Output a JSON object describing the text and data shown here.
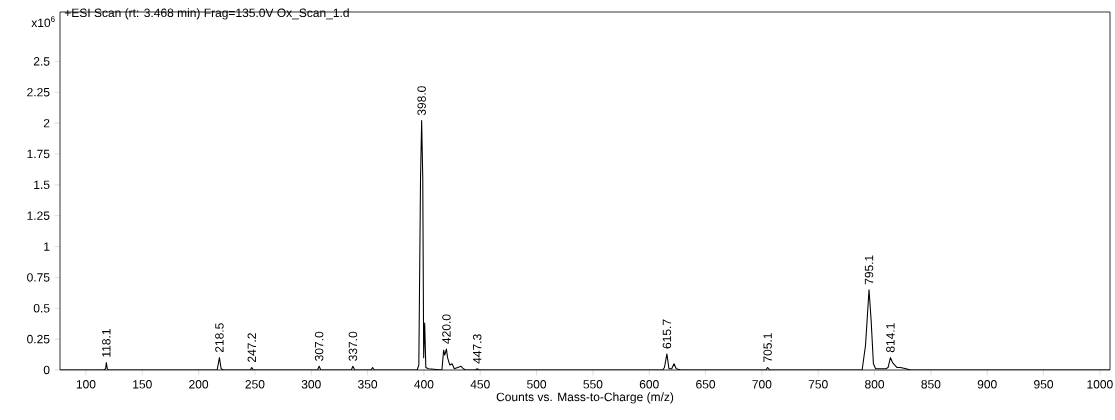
{
  "chart_data": {
    "type": "line",
    "title": "+ESI Scan (rt: 3.468 min) Frag=135.0V Ox_Scan_1.d",
    "xlabel": "Counts vs. Mass-to-Charge (m/z)",
    "ylabel": "x10$^{6}$",
    "x": [
      77,
      100,
      116,
      117.5,
      118.1,
      119,
      120,
      216.5,
      218.5,
      220,
      222,
      246,
      247.2,
      248.5,
      305.5,
      307.0,
      308.5,
      335.5,
      337.0,
      338.5,
      353,
      354.5,
      356,
      394,
      395.5,
      397,
      398.0,
      399,
      399.8,
      400.7,
      401.7,
      404,
      416,
      417.5,
      418.5,
      420.0,
      421,
      423,
      425,
      427,
      433,
      435,
      437,
      446,
      447.3,
      449,
      612,
      613.5,
      615.7,
      617.5,
      620,
      622,
      624,
      628,
      703.5,
      705.1,
      707,
      789,
      792,
      795.1,
      797,
      799,
      801,
      810,
      812,
      814.1,
      816,
      818,
      820,
      823,
      828,
      832,
      1009
    ],
    "series": [
      {
        "color": "#000000",
        "values": [
          0,
          0,
          0,
          0.01,
          0.06,
          0.01,
          0,
          0,
          0.1,
          0.01,
          0,
          0,
          0.02,
          0,
          0,
          0.03,
          0,
          0,
          0.03,
          0,
          0,
          0.02,
          0,
          0,
          0.04,
          1.55,
          2.02,
          1.55,
          0.1,
          0.38,
          0.02,
          0.01,
          0,
          0.16,
          0.12,
          0.17,
          0.1,
          0.04,
          0.05,
          0.01,
          0.03,
          0.01,
          0,
          0,
          0.01,
          0,
          0,
          0.02,
          0.13,
          0.01,
          0.01,
          0.05,
          0.01,
          0,
          0,
          0.02,
          0,
          0,
          0.2,
          0.65,
          0.4,
          0.05,
          0.01,
          0.01,
          0.02,
          0.1,
          0.06,
          0.04,
          0.02,
          0.02,
          0.01,
          0,
          0
        ]
      }
    ],
    "xlim": [
      77,
      1009
    ],
    "ylim": [
      0,
      2.9
    ],
    "xticks": [
      100,
      150,
      200,
      250,
      300,
      350,
      400,
      450,
      500,
      550,
      600,
      650,
      700,
      750,
      800,
      850,
      900,
      950,
      1000
    ],
    "yticks": [
      0,
      0.25,
      0.5,
      0.75,
      1,
      1.25,
      1.5,
      1.75,
      2,
      2.25,
      2.5
    ],
    "annotations": [
      {
        "text": "118.1",
        "x": 118.1,
        "y": 0.06
      },
      {
        "text": "218.5",
        "x": 218.5,
        "y": 0.1
      },
      {
        "text": "247.2",
        "x": 247.2,
        "y": 0.02
      },
      {
        "text": "307.0",
        "x": 307.0,
        "y": 0.03
      },
      {
        "text": "337.0",
        "x": 337.0,
        "y": 0.03
      },
      {
        "text": "398.0",
        "x": 398.0,
        "y": 2.02
      },
      {
        "text": "420.0",
        "x": 420.0,
        "y": 0.17
      },
      {
        "text": "447.3",
        "x": 447.3,
        "y": 0.01
      },
      {
        "text": "615.7",
        "x": 615.7,
        "y": 0.13
      },
      {
        "text": "705.1",
        "x": 705.1,
        "y": 0.02
      },
      {
        "text": "795.1",
        "x": 795.1,
        "y": 0.65
      },
      {
        "text": "814.1",
        "x": 814.1,
        "y": 0.1
      }
    ],
    "grid": false,
    "marker": "none",
    "line_style": "solid"
  }
}
